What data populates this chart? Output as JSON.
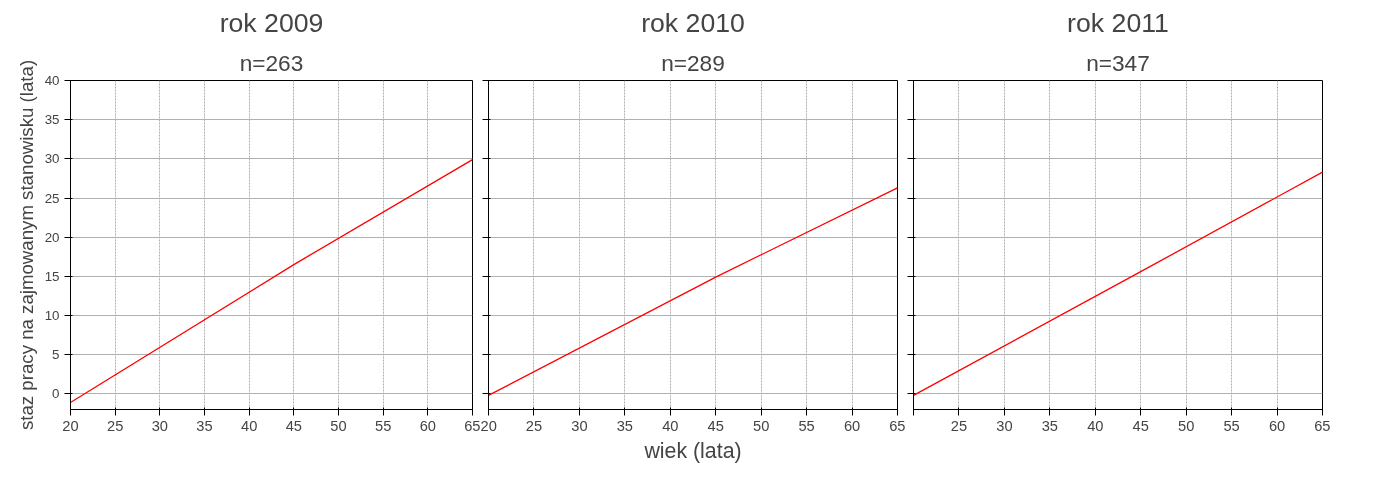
{
  "chart_data": [
    {
      "type": "line",
      "title": "rok 2009",
      "subtitle": "n=263",
      "ylabel": "staz pracy na zajmowanym stanowisku (lata)",
      "x": [
        20,
        45,
        65
      ],
      "series": [
        {
          "color": "#ff0000",
          "values": [
            -1.1,
            16.5,
            29.9
          ]
        }
      ],
      "xlim": [
        20,
        65
      ],
      "ylim": [
        -2,
        40
      ],
      "xticks": [
        20,
        25,
        30,
        35,
        40,
        45,
        50,
        55,
        60,
        65
      ],
      "yticks": [
        0,
        5,
        10,
        15,
        20,
        25,
        30,
        35,
        40
      ],
      "grid": true,
      "marker": "none",
      "line_style": "solid"
    },
    {
      "type": "line",
      "title": "rok 2010",
      "subtitle": "n=289",
      "xlabel": "wiek (lata)",
      "x": [
        20,
        45,
        65
      ],
      "series": [
        {
          "color": "#ff0000",
          "values": [
            -0.2,
            14.9,
            26.3
          ]
        }
      ],
      "xlim": [
        20,
        65
      ],
      "ylim": [
        -2,
        40
      ],
      "xticks": [
        20,
        25,
        30,
        35,
        40,
        45,
        50,
        55,
        60,
        65
      ],
      "yticks": [
        0,
        5,
        10,
        15,
        20,
        25,
        30,
        35,
        40
      ],
      "grid": true,
      "tick_labels": "x",
      "marker": "none",
      "line_style": "solid"
    },
    {
      "type": "line",
      "title": "rok 2011",
      "subtitle": "n=347",
      "x": [
        20,
        45,
        65
      ],
      "series": [
        {
          "color": "#ff0000",
          "values": [
            -0.2,
            15.6,
            28.3
          ]
        }
      ],
      "xlim": [
        20,
        65
      ],
      "ylim": [
        -2,
        40
      ],
      "xticks": [
        {
          "value": 20,
          "label": null
        },
        25,
        30,
        35,
        40,
        45,
        50,
        55,
        60,
        65
      ],
      "yticks": [
        0,
        5,
        10,
        15,
        20,
        25,
        30,
        35,
        40
      ],
      "grid": true,
      "tick_labels": "x",
      "marker": "none",
      "line_style": "solid"
    }
  ]
}
